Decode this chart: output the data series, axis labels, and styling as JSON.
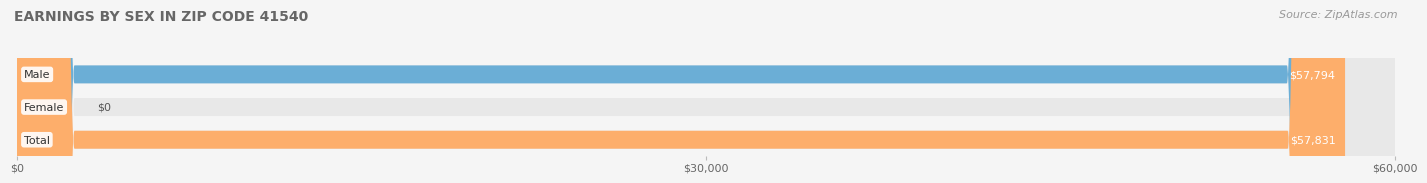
{
  "title": "EARNINGS BY SEX IN ZIP CODE 41540",
  "source": "Source: ZipAtlas.com",
  "categories": [
    "Male",
    "Female",
    "Total"
  ],
  "values": [
    57794,
    0,
    57831
  ],
  "bar_colors": [
    "#6baed6",
    "#f4a9b8",
    "#fdae6b"
  ],
  "label_colors": [
    "#ffffff",
    "#555555",
    "#ffffff"
  ],
  "value_labels": [
    "$57,794",
    "$0",
    "$57,831"
  ],
  "xlim": [
    0,
    60000
  ],
  "xticks": [
    0,
    30000,
    60000
  ],
  "xtick_labels": [
    "$0",
    "$30,000",
    "$60,000"
  ],
  "bar_height": 0.55,
  "background_color": "#f5f5f5",
  "bar_bg_color": "#e8e8e8",
  "title_fontsize": 10,
  "source_fontsize": 8,
  "label_fontsize": 8,
  "value_fontsize": 8
}
